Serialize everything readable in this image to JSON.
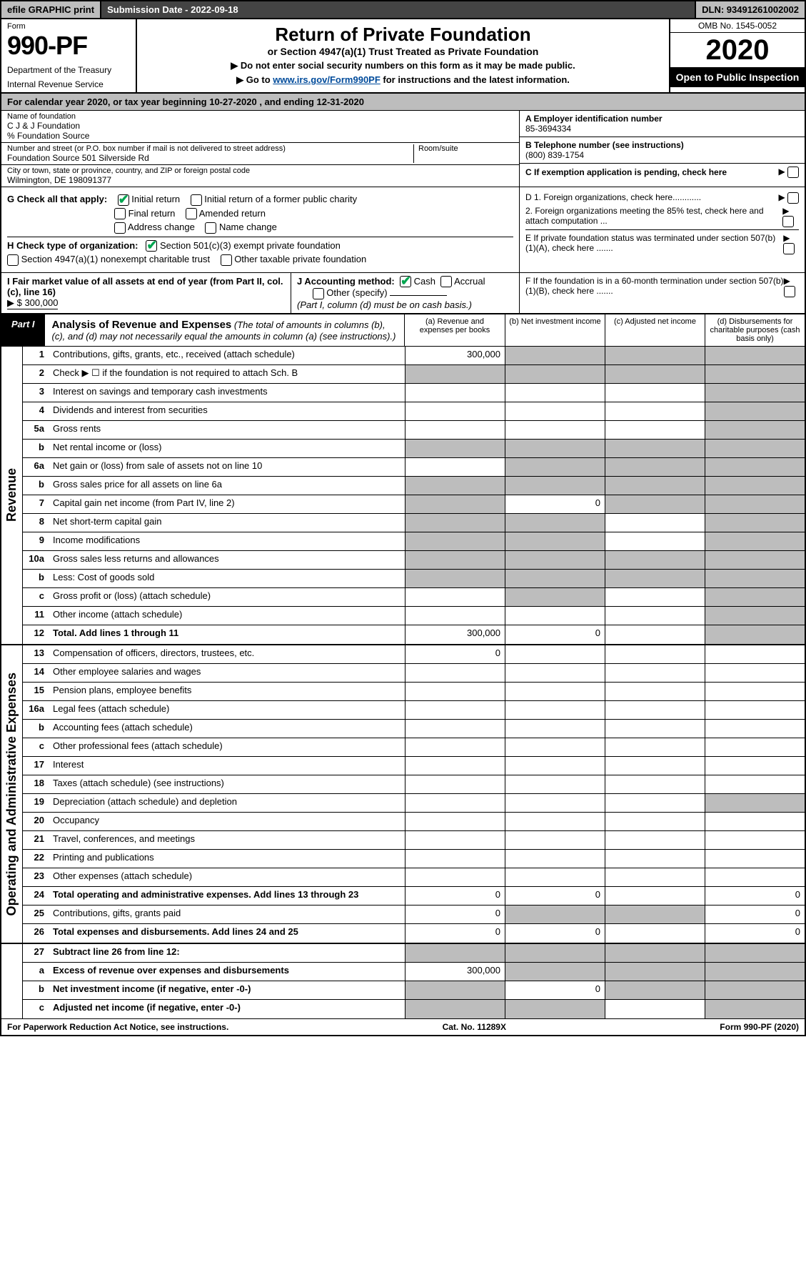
{
  "topbar": {
    "efile": "efile GRAPHIC print",
    "submission": "Submission Date - 2022-09-18",
    "dln": "DLN: 93491261002002"
  },
  "header": {
    "form_word": "Form",
    "form_no": "990-PF",
    "dept": "Department of the Treasury",
    "irs": "Internal Revenue Service",
    "title": "Return of Private Foundation",
    "subtitle": "or Section 4947(a)(1) Trust Treated as Private Foundation",
    "note1": "▶ Do not enter social security numbers on this form as it may be made public.",
    "note2_pre": "▶ Go to ",
    "note2_link": "www.irs.gov/Form990PF",
    "note2_post": " for instructions and the latest information.",
    "omb": "OMB No. 1545-0052",
    "year": "2020",
    "open": "Open to Public Inspection"
  },
  "calyear": "For calendar year 2020, or tax year beginning 10-27-2020               , and ending 12-31-2020",
  "entity": {
    "name_lbl": "Name of foundation",
    "name": "C J & J Foundation",
    "care": "% Foundation Source",
    "addr_lbl": "Number and street (or P.O. box number if mail is not delivered to street address)",
    "addr": "Foundation Source 501 Silverside Rd",
    "room_lbl": "Room/suite",
    "city_lbl": "City or town, state or province, country, and ZIP or foreign postal code",
    "city": "Wilmington, DE  198091377",
    "a_lbl": "A Employer identification number",
    "a_val": "85-3694334",
    "b_lbl": "B Telephone number (see instructions)",
    "b_val": "(800) 839-1754",
    "c_lbl": "C If exemption application is pending, check here"
  },
  "checks": {
    "g_lbl": "G Check all that apply:",
    "g_items": [
      "Initial return",
      "Initial return of a former public charity",
      "Final return",
      "Amended return",
      "Address change",
      "Name change"
    ],
    "h_lbl": "H Check type of organization:",
    "h_items": [
      "Section 501(c)(3) exempt private foundation",
      "Section 4947(a)(1) nonexempt charitable trust",
      "Other taxable private foundation"
    ],
    "d1": "D 1. Foreign organizations, check here............",
    "d2": "2. Foreign organizations meeting the 85% test, check here and attach computation ...",
    "e": "E  If private foundation status was terminated under section 507(b)(1)(A), check here .......",
    "f": "F  If the foundation is in a 60-month termination under section 507(b)(1)(B), check here ......."
  },
  "hi": {
    "i_lbl": "I Fair market value of all assets at end of year (from Part II, col. (c), line 16)",
    "i_val": "▶ $  300,000",
    "j_lbl": "J Accounting method:",
    "j_cash": "Cash",
    "j_accrual": "Accrual",
    "j_other": "Other (specify)",
    "j_note": "(Part I, column (d) must be on cash basis.)"
  },
  "part1": {
    "label": "Part I",
    "title": "Analysis of Revenue and Expenses",
    "title_note": "(The total of amounts in columns (b), (c), and (d) may not necessarily equal the amounts in column (a) (see instructions).)",
    "col_a": "(a)  Revenue and expenses per books",
    "col_b": "(b)  Net investment income",
    "col_c": "(c)  Adjusted net income",
    "col_d": "(d)  Disbursements for charitable purposes (cash basis only)"
  },
  "side_revenue": "Revenue",
  "side_expenses": "Operating and Administrative Expenses",
  "rows_rev": [
    {
      "n": "1",
      "l": "Contributions, gifts, grants, etc., received (attach schedule)",
      "a": "300,000",
      "bg": [
        "",
        "g",
        "g",
        "g"
      ]
    },
    {
      "n": "2",
      "l": "Check ▶ ☐ if the foundation is not required to attach Sch. B",
      "bg": [
        "g",
        "g",
        "g",
        "g"
      ],
      "small": true
    },
    {
      "n": "3",
      "l": "Interest on savings and temporary cash investments",
      "bg": [
        "",
        "",
        "",
        "g"
      ]
    },
    {
      "n": "4",
      "l": "Dividends and interest from securities",
      "bg": [
        "",
        "",
        "",
        "g"
      ]
    },
    {
      "n": "5a",
      "l": "Gross rents",
      "bg": [
        "",
        "",
        "",
        "g"
      ]
    },
    {
      "n": "b",
      "l": "Net rental income or (loss)",
      "bg": [
        "g",
        "g",
        "g",
        "g"
      ],
      "inline": true
    },
    {
      "n": "6a",
      "l": "Net gain or (loss) from sale of assets not on line 10",
      "bg": [
        "",
        "g",
        "g",
        "g"
      ]
    },
    {
      "n": "b",
      "l": "Gross sales price for all assets on line 6a",
      "bg": [
        "g",
        "g",
        "g",
        "g"
      ],
      "inline": true
    },
    {
      "n": "7",
      "l": "Capital gain net income (from Part IV, line 2)",
      "b": "0",
      "bg": [
        "g",
        "",
        "g",
        "g"
      ]
    },
    {
      "n": "8",
      "l": "Net short-term capital gain",
      "bg": [
        "g",
        "g",
        "",
        "g"
      ]
    },
    {
      "n": "9",
      "l": "Income modifications",
      "bg": [
        "g",
        "g",
        "",
        "g"
      ]
    },
    {
      "n": "10a",
      "l": "Gross sales less returns and allowances",
      "bg": [
        "g",
        "g",
        "g",
        "g"
      ],
      "inline": true
    },
    {
      "n": "b",
      "l": "Less: Cost of goods sold",
      "bg": [
        "g",
        "g",
        "g",
        "g"
      ],
      "inline": true
    },
    {
      "n": "c",
      "l": "Gross profit or (loss) (attach schedule)",
      "bg": [
        "",
        "g",
        "",
        "g"
      ]
    },
    {
      "n": "11",
      "l": "Other income (attach schedule)",
      "bg": [
        "",
        "",
        "",
        "g"
      ]
    },
    {
      "n": "12",
      "l": "Total. Add lines 1 through 11",
      "a": "300,000",
      "b": "0",
      "bg": [
        "",
        "",
        "",
        "g"
      ],
      "bold": true
    }
  ],
  "rows_exp": [
    {
      "n": "13",
      "l": "Compensation of officers, directors, trustees, etc.",
      "a": "0",
      "bg": [
        "",
        "",
        "",
        ""
      ]
    },
    {
      "n": "14",
      "l": "Other employee salaries and wages",
      "bg": [
        "",
        "",
        "",
        ""
      ]
    },
    {
      "n": "15",
      "l": "Pension plans, employee benefits",
      "bg": [
        "",
        "",
        "",
        ""
      ]
    },
    {
      "n": "16a",
      "l": "Legal fees (attach schedule)",
      "bg": [
        "",
        "",
        "",
        ""
      ]
    },
    {
      "n": "b",
      "l": "Accounting fees (attach schedule)",
      "bg": [
        "",
        "",
        "",
        ""
      ]
    },
    {
      "n": "c",
      "l": "Other professional fees (attach schedule)",
      "bg": [
        "",
        "",
        "",
        ""
      ]
    },
    {
      "n": "17",
      "l": "Interest",
      "bg": [
        "",
        "",
        "",
        ""
      ]
    },
    {
      "n": "18",
      "l": "Taxes (attach schedule) (see instructions)",
      "bg": [
        "",
        "",
        "",
        ""
      ]
    },
    {
      "n": "19",
      "l": "Depreciation (attach schedule) and depletion",
      "bg": [
        "",
        "",
        "",
        "g"
      ]
    },
    {
      "n": "20",
      "l": "Occupancy",
      "bg": [
        "",
        "",
        "",
        ""
      ]
    },
    {
      "n": "21",
      "l": "Travel, conferences, and meetings",
      "bg": [
        "",
        "",
        "",
        ""
      ]
    },
    {
      "n": "22",
      "l": "Printing and publications",
      "bg": [
        "",
        "",
        "",
        ""
      ]
    },
    {
      "n": "23",
      "l": "Other expenses (attach schedule)",
      "bg": [
        "",
        "",
        "",
        ""
      ]
    },
    {
      "n": "24",
      "l": "Total operating and administrative expenses. Add lines 13 through 23",
      "a": "0",
      "b": "0",
      "d": "0",
      "bg": [
        "",
        "",
        "",
        ""
      ],
      "bold": true
    },
    {
      "n": "25",
      "l": "Contributions, gifts, grants paid",
      "a": "0",
      "d": "0",
      "bg": [
        "",
        "g",
        "g",
        ""
      ]
    },
    {
      "n": "26",
      "l": "Total expenses and disbursements. Add lines 24 and 25",
      "a": "0",
      "b": "0",
      "d": "0",
      "bg": [
        "",
        "",
        "",
        ""
      ],
      "bold": true
    }
  ],
  "rows_net": [
    {
      "n": "27",
      "l": "Subtract line 26 from line 12:",
      "bg": [
        "g",
        "g",
        "g",
        "g"
      ],
      "bold": true
    },
    {
      "n": "a",
      "l": "Excess of revenue over expenses and disbursements",
      "a": "300,000",
      "bg": [
        "",
        "g",
        "g",
        "g"
      ],
      "bold": true
    },
    {
      "n": "b",
      "l": "Net investment income (if negative, enter -0-)",
      "b": "0",
      "bg": [
        "g",
        "",
        "g",
        "g"
      ],
      "bold": true
    },
    {
      "n": "c",
      "l": "Adjusted net income (if negative, enter -0-)",
      "bg": [
        "g",
        "g",
        "",
        "g"
      ],
      "bold": true
    }
  ],
  "footer": {
    "left": "For Paperwork Reduction Act Notice, see instructions.",
    "mid": "Cat. No. 11289X",
    "right": "Form 990-PF (2020)"
  }
}
